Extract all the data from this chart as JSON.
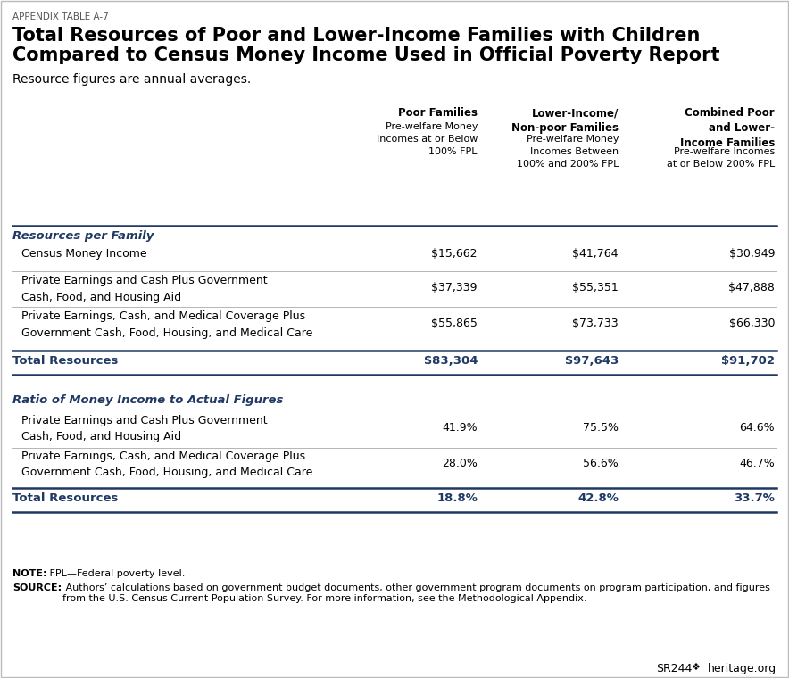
{
  "appendix_label": "APPENDIX TABLE A-7",
  "title_line1": "Total Resources of Poor and Lower-Income Families with Children",
  "title_line2": "Compared to Census Money Income Used in Official Poverty Report",
  "subtitle": "Resource figures are annual averages.",
  "blue_color": "#1F3864",
  "row_sep_color": "#aaaaaa",
  "background": "#ffffff",
  "col1_header_bold": "Poor Families",
  "col1_header_sub": "Pre-welfare Money\nIncomes at or Below\n100% FPL",
  "col2_header_bold": "Lower-Income/\nNon-poor Families",
  "col2_header_sub": "Pre-welfare Money\nIncomes Between\n100% and 200% FPL",
  "col3_header_bold": "Combined Poor\nand Lower-\nIncome Families",
  "col3_header_sub": "Pre-welfare Incomes\nat or Below 200% FPL",
  "sec1_header": "Resources per Family",
  "sec1_rows": [
    [
      "Census Money Income",
      "$15,662",
      "$41,764",
      "$30,949"
    ],
    [
      "Private Earnings and Cash Plus Government\nCash, Food, and Housing Aid",
      "$37,339",
      "$55,351",
      "$47,888"
    ],
    [
      "Private Earnings, Cash, and Medical Coverage Plus\nGovernment Cash, Food, Housing, and Medical Care",
      "$55,865",
      "$73,733",
      "$66,330"
    ]
  ],
  "sec1_total": [
    "Total Resources",
    "$83,304",
    "$97,643",
    "$91,702"
  ],
  "sec2_header": "Ratio of Money Income to Actual Figures",
  "sec2_rows": [
    [
      "Private Earnings and Cash Plus Government\nCash, Food, and Housing Aid",
      "41.9%",
      "75.5%",
      "64.6%"
    ],
    [
      "Private Earnings, Cash, and Medical Coverage Plus\nGovernment Cash, Food, Housing, and Medical Care",
      "28.0%",
      "56.6%",
      "46.7%"
    ]
  ],
  "sec2_total": [
    "Total Resources",
    "18.8%",
    "42.8%",
    "33.7%"
  ],
  "note_bold": "NOTE:",
  "note_text": " FPL—Federal poverty level.",
  "source_bold": "SOURCE:",
  "source_text": " Authors’ calculations based on government budget documents, other government program documents on program participation, and figures\nfrom the U.S. Census Current Population Survey. For more information, see the Methodological Appendix.",
  "footer": "SR244     heritage.org"
}
